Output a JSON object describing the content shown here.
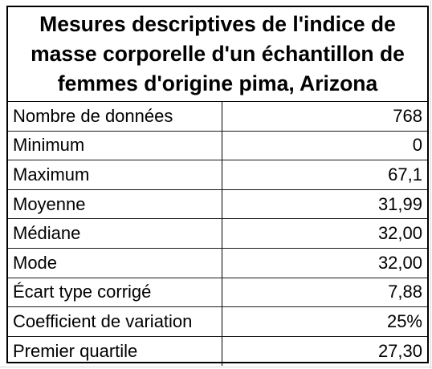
{
  "table": {
    "title": "Mesures descriptives de l'indice de masse corporelle d'un échantillon de femmes d'origine pima, Arizona",
    "rows": [
      {
        "label": "Nombre de données",
        "value": "768"
      },
      {
        "label": "Minimum",
        "value": "0"
      },
      {
        "label": "Maximum",
        "value": "67,1"
      },
      {
        "label": "Moyenne",
        "value": "31,99"
      },
      {
        "label": "Médiane",
        "value": "32,00"
      },
      {
        "label": "Mode",
        "value": "32,00"
      },
      {
        "label": "Écart type corrigé",
        "value": "7,88"
      },
      {
        "label": "Coefficient de variation",
        "value": "25%"
      },
      {
        "label": "Premier quartile",
        "value": "27,30"
      }
    ]
  }
}
